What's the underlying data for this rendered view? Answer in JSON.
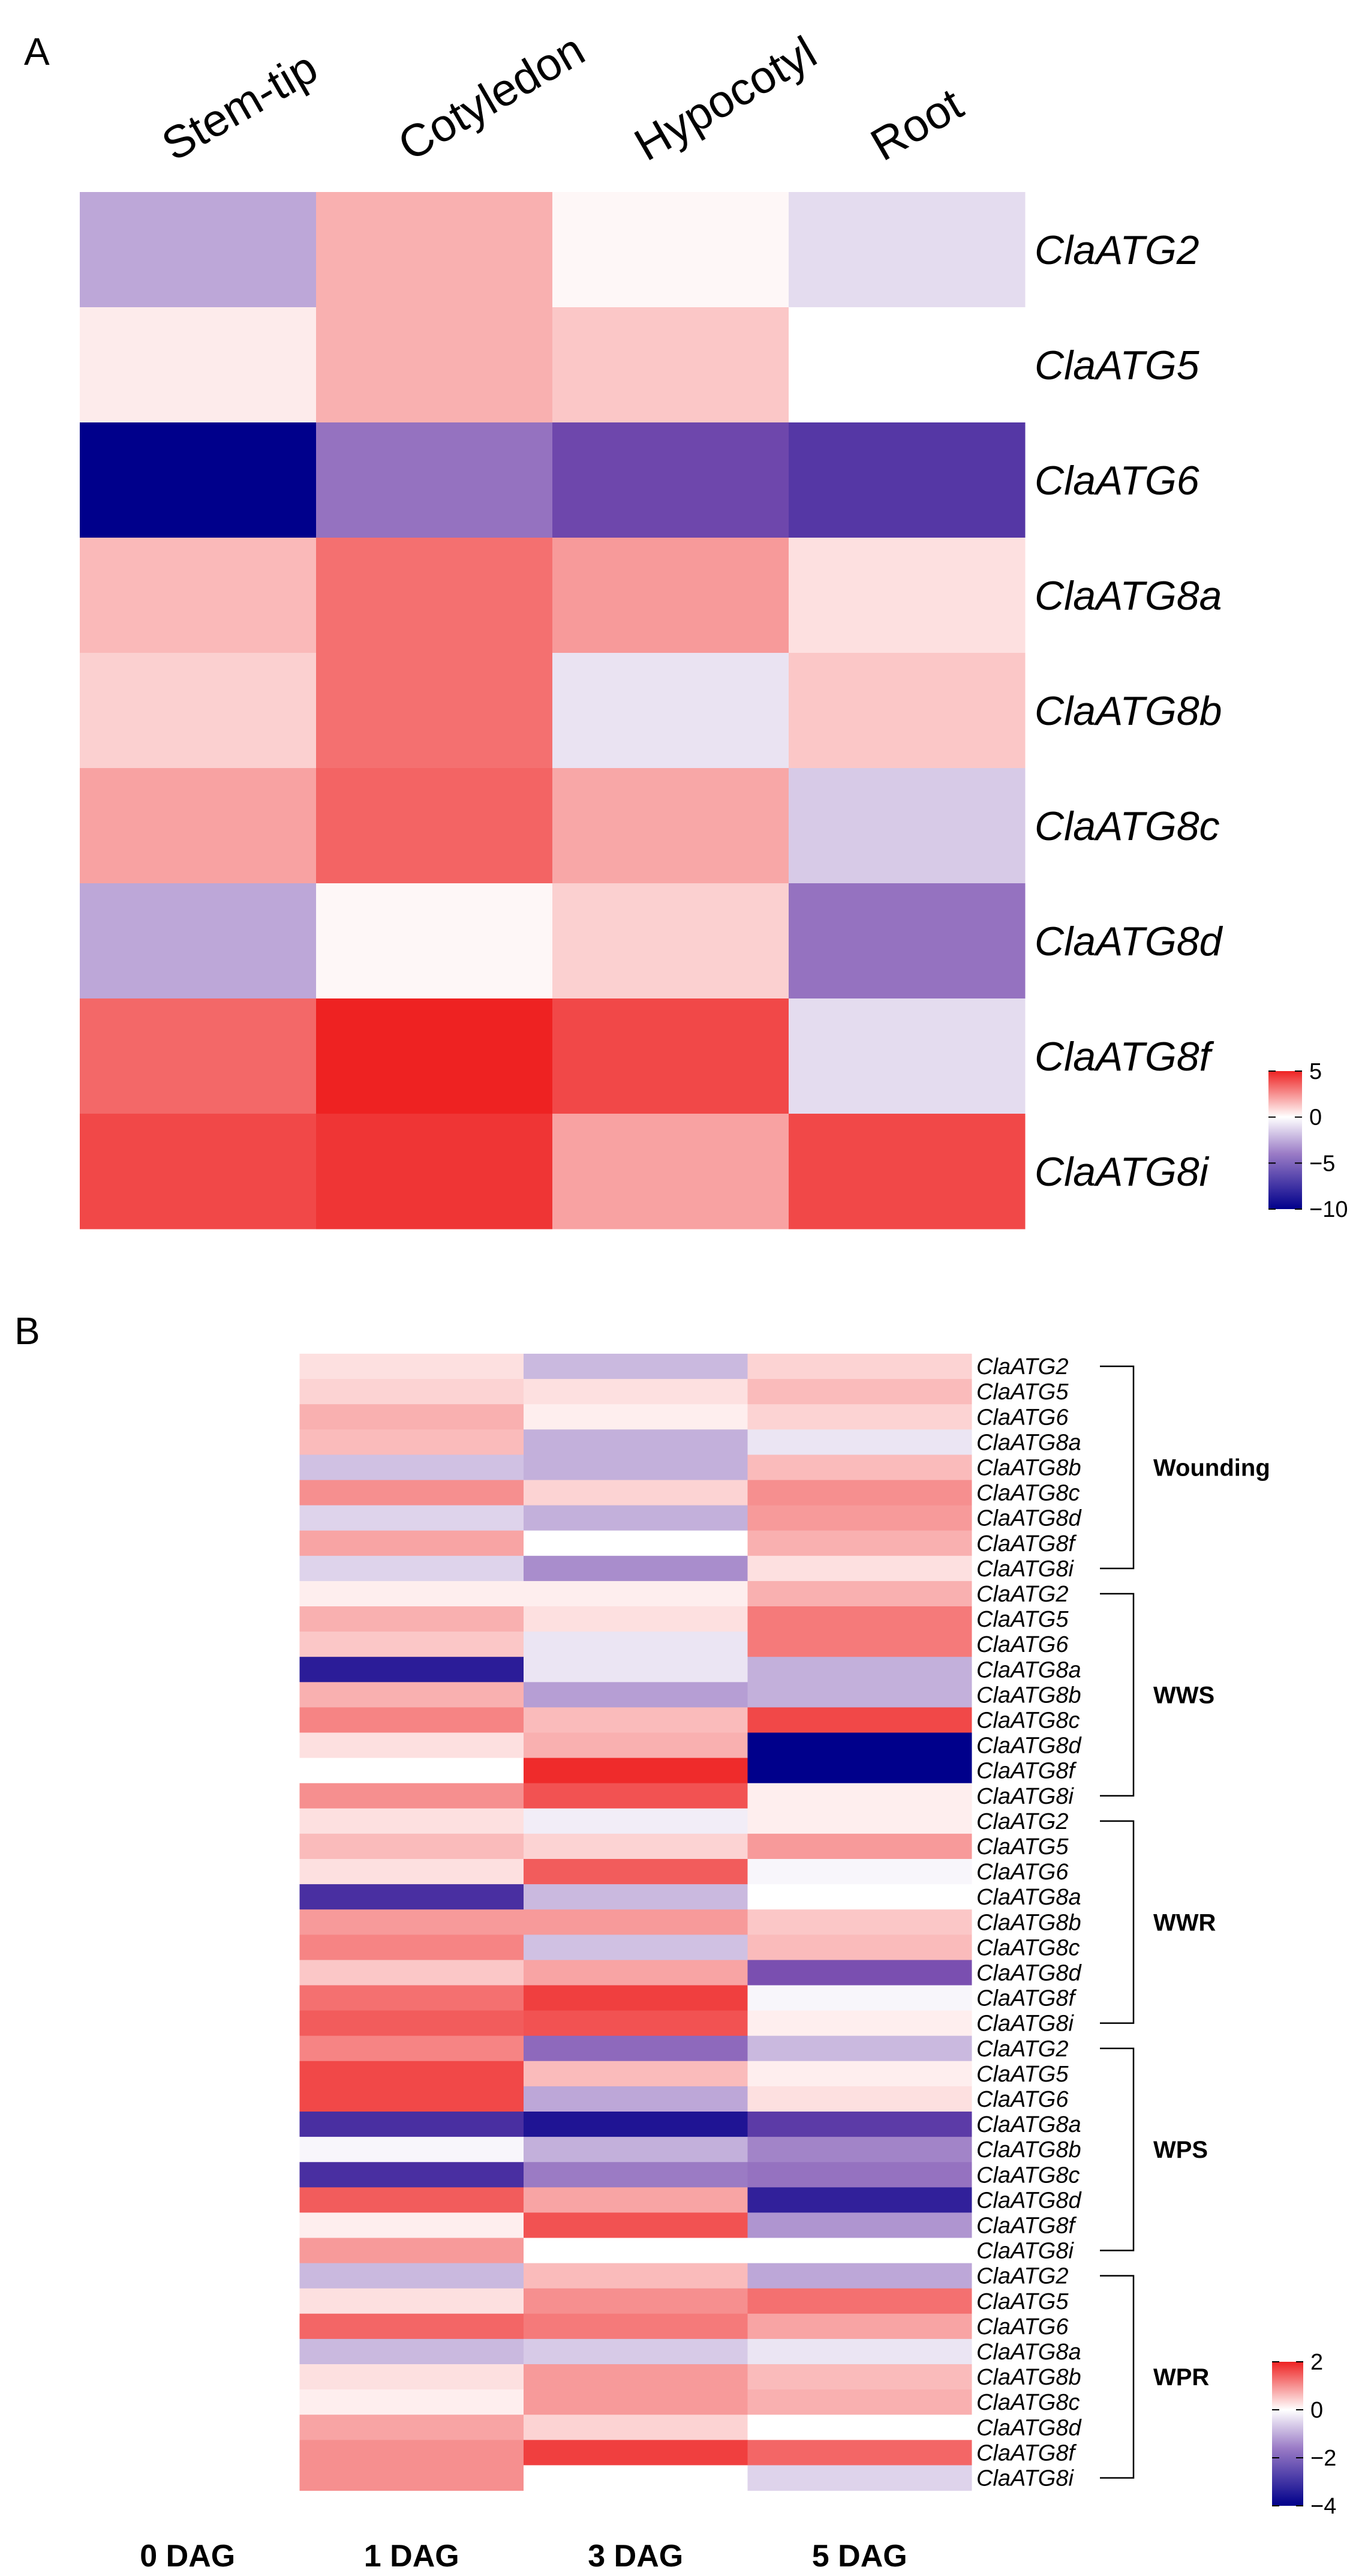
{
  "colors": {
    "low": "#00008B",
    "mid_low": "#7A4FB0",
    "zero": "#FFFFFF",
    "high": "#EE2222"
  },
  "chart_data": [
    {
      "type": "heatmap",
      "panel": "A",
      "columns": [
        "Stem-tip",
        "Cotyledon",
        "Hypocotyl",
        "Root"
      ],
      "rows": [
        "ClaATG2",
        "ClaATG5",
        "ClaATG6",
        "ClaATG8a",
        "ClaATG8b",
        "ClaATG8c",
        "ClaATG8d",
        "ClaATG8f",
        "ClaATG8i"
      ],
      "values": [
        [
          -2.5,
          1.5,
          0.1,
          -1.0
        ],
        [
          0.3,
          1.5,
          1.0,
          0.0
        ],
        [
          -10.0,
          -4.0,
          -5.5,
          -6.5
        ],
        [
          1.3,
          3.0,
          2.0,
          0.5
        ],
        [
          0.8,
          3.0,
          -0.8,
          1.0
        ],
        [
          1.8,
          3.3,
          1.7,
          -1.5
        ],
        [
          -2.5,
          0.1,
          0.8,
          -4.0
        ],
        [
          3.2,
          5.0,
          4.0,
          -1.0
        ],
        [
          4.0,
          4.5,
          1.8,
          4.0
        ]
      ],
      "legend": {
        "ticks": [
          5,
          0,
          -5,
          -10
        ],
        "range": [
          -10,
          5
        ]
      }
    },
    {
      "type": "heatmap",
      "panel": "B",
      "columns": [
        "0 DAG",
        "1 DAG",
        "3 DAG",
        "5 DAG"
      ],
      "rows": [
        "ClaATG2",
        "ClaATG5",
        "ClaATG6",
        "ClaATG8a",
        "ClaATG8b",
        "ClaATG8c",
        "ClaATG8d",
        "ClaATG8f",
        "ClaATG8i"
      ],
      "groups": [
        {
          "name": "Wounding",
          "values": [
            [
              0,
              0.2,
              -0.8,
              0.3
            ],
            [
              0,
              0.3,
              0.2,
              0.5
            ],
            [
              0,
              0.6,
              0.1,
              0.3
            ],
            [
              0,
              0.5,
              -0.9,
              -0.3
            ],
            [
              0,
              -0.7,
              -0.9,
              0.5
            ],
            [
              0,
              0.9,
              0.3,
              0.9
            ],
            [
              0,
              -0.5,
              -0.9,
              0.8
            ],
            [
              0,
              0.7,
              0.0,
              0.6
            ],
            [
              0,
              -0.5,
              -1.3,
              0.2
            ]
          ]
        },
        {
          "name": "WWS",
          "values": [
            [
              0,
              0.1,
              0.1,
              0.6
            ],
            [
              0,
              0.6,
              0.2,
              1.1
            ],
            [
              0,
              0.4,
              -0.3,
              1.1
            ],
            [
              0,
              -3.3,
              -0.3,
              -0.9
            ],
            [
              0,
              0.6,
              -1.1,
              -0.9
            ],
            [
              0,
              1.0,
              0.5,
              1.6
            ],
            [
              0,
              0.2,
              0.6,
              -4.0
            ],
            [
              0,
              0.0,
              1.9,
              -4.0
            ],
            [
              0,
              0.9,
              1.5,
              0.1
            ]
          ]
        },
        {
          "name": "WWR",
          "values": [
            [
              0,
              0.2,
              -0.2,
              0.1
            ],
            [
              0,
              0.5,
              0.3,
              0.8
            ],
            [
              0,
              0.2,
              1.4,
              -0.1
            ],
            [
              0,
              -2.8,
              -0.8,
              0.0
            ],
            [
              0,
              0.8,
              0.8,
              0.4
            ],
            [
              0,
              1.0,
              -0.7,
              0.5
            ],
            [
              0,
              0.4,
              0.7,
              -2.0
            ],
            [
              0,
              1.2,
              1.7,
              -0.1
            ],
            [
              0,
              1.4,
              1.5,
              0.1
            ]
          ]
        },
        {
          "name": "WPS",
          "values": [
            [
              0,
              1.0,
              -1.7,
              -0.8
            ],
            [
              0,
              1.6,
              0.5,
              0.1
            ],
            [
              0,
              1.6,
              -1.0,
              0.2
            ],
            [
              0,
              -2.8,
              -3.5,
              -2.5
            ],
            [
              0,
              -0.1,
              -0.9,
              -1.4
            ],
            [
              0,
              -2.8,
              -1.5,
              -1.6
            ],
            [
              0,
              1.4,
              0.7,
              -3.2
            ],
            [
              0,
              0.1,
              1.5,
              -1.2
            ],
            [
              0,
              0.8,
              0.0,
              0.0
            ]
          ]
        },
        {
          "name": "WPR",
          "values": [
            [
              0,
              -0.8,
              0.5,
              -1.0
            ],
            [
              0,
              0.2,
              0.9,
              1.2
            ],
            [
              0,
              1.3,
              1.1,
              0.7
            ],
            [
              0,
              -0.8,
              -0.6,
              -0.3
            ],
            [
              0,
              0.2,
              0.8,
              0.5
            ],
            [
              0,
              0.1,
              0.8,
              0.6
            ],
            [
              0,
              0.7,
              0.3,
              0.0
            ],
            [
              0,
              0.9,
              1.7,
              1.3
            ],
            [
              0,
              0.9,
              0.0,
              -0.5
            ]
          ]
        }
      ],
      "legend": {
        "ticks": [
          2,
          0,
          -2,
          -4
        ],
        "range": [
          -4,
          2
        ]
      }
    }
  ],
  "panelA": {
    "letter": "A",
    "columns": [
      "Stem-tip",
      "Cotyledon",
      "Hypocotyl",
      "Root"
    ],
    "rows": [
      "ClaATG2",
      "ClaATG5",
      "ClaATG6",
      "ClaATG8a",
      "ClaATG8b",
      "ClaATG8c",
      "ClaATG8d",
      "ClaATG8f",
      "ClaATG8i"
    ],
    "legend_ticks": [
      "5",
      "0",
      "−5",
      "−10"
    ]
  },
  "panelB": {
    "letter": "B",
    "columns": [
      "0 DAG",
      "1 DAG",
      "3 DAG",
      "5 DAG"
    ],
    "groups": [
      "Wounding",
      "WWS",
      "WWR",
      "WPS",
      "WPR"
    ],
    "legend_ticks": [
      "2",
      "0",
      "−2",
      "−4"
    ]
  }
}
